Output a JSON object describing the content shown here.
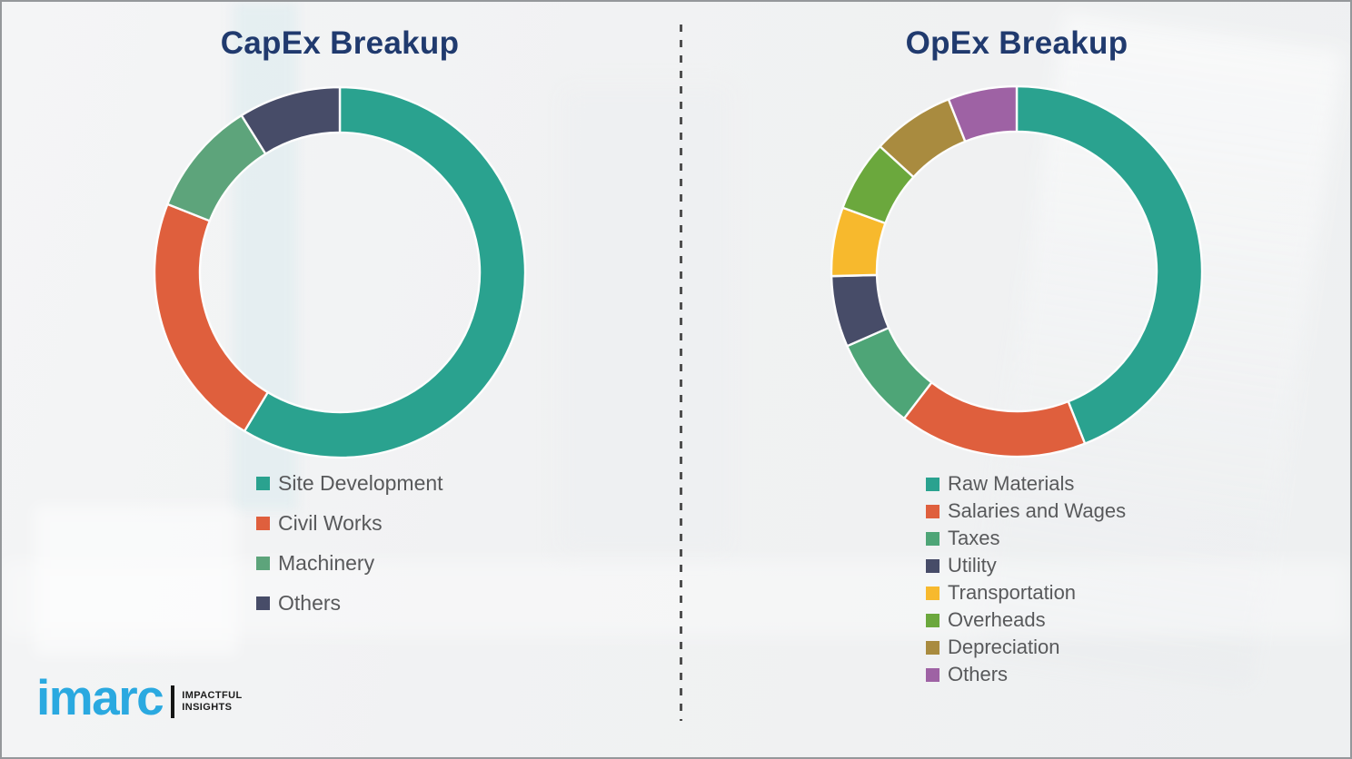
{
  "chart_data": [
    {
      "type": "donut",
      "title": "CapEx Breakup",
      "labels_on_chart": false,
      "legend_position": "below-left",
      "values_estimated_from_angles": true,
      "value_unit": "percent",
      "segments": [
        {
          "label": "Site Development",
          "value": 58.6,
          "color": "#2aa28f"
        },
        {
          "label": "Civil Works",
          "value": 22.4,
          "color": "#df5f3d"
        },
        {
          "label": "Machinery",
          "value": 10.1,
          "color": "#5da47b"
        },
        {
          "label": "Others",
          "value": 8.9,
          "color": "#474c68"
        }
      ]
    },
    {
      "type": "donut",
      "title": "OpEx Breakup",
      "labels_on_chart": false,
      "legend_position": "below-left",
      "values_estimated_from_angles": true,
      "value_unit": "percent",
      "segments": [
        {
          "label": "Raw Materials",
          "value": 44.0,
          "color": "#2aa28f"
        },
        {
          "label": "Salaries and Wages",
          "value": 16.4,
          "color": "#df5f3d"
        },
        {
          "label": "Taxes",
          "value": 8.0,
          "color": "#4ea577"
        },
        {
          "label": "Utility",
          "value": 6.2,
          "color": "#474c68"
        },
        {
          "label": "Transportation",
          "value": 6.0,
          "color": "#f7b92d"
        },
        {
          "label": "Overheads",
          "value": 6.2,
          "color": "#6ba83d"
        },
        {
          "label": "Depreciation",
          "value": 7.2,
          "color": "#a98b3f"
        },
        {
          "label": "Others",
          "value": 6.0,
          "color": "#9e62a4"
        }
      ]
    }
  ],
  "branding": {
    "logo_text": "imarc",
    "tagline_line1": "IMPACTFUL",
    "tagline_line2": "INSIGHTS"
  },
  "theme": {
    "title_color": "#203a6e",
    "legend_text_color": "#58595b",
    "divider_color": "#4f4f4f",
    "logo_blue": "#2aa9e0",
    "background": "#f1f2f3",
    "segment_gap_color": "#fdfdfd"
  }
}
